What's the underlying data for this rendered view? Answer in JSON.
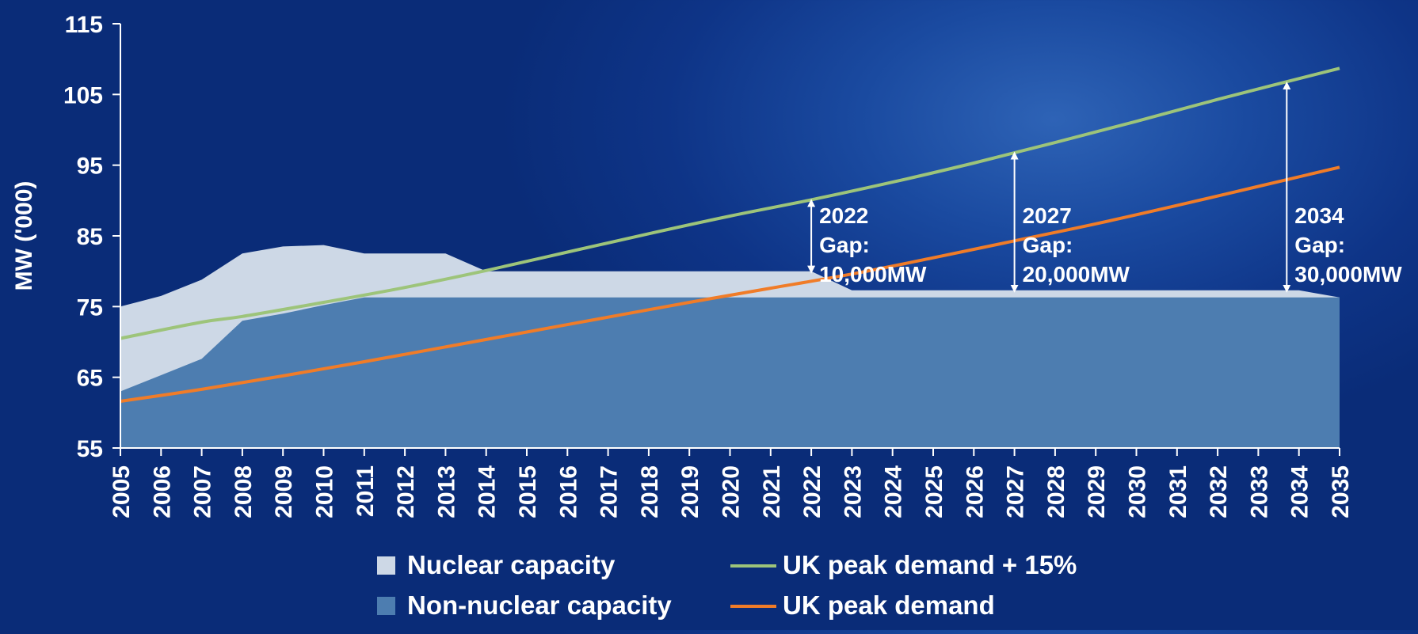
{
  "chart_data": {
    "type": "area",
    "ylabel": "MW ('000)",
    "xlabel": "",
    "ylim": [
      55,
      115
    ],
    "y_ticks": [
      55,
      65,
      75,
      85,
      95,
      105,
      115
    ],
    "x_categories": [
      "2005",
      "2006",
      "2007",
      "2008",
      "2009",
      "2010",
      "2011",
      "2012",
      "2013",
      "2014",
      "2015",
      "2016",
      "2017",
      "2018",
      "2019",
      "2020",
      "2021",
      "2022",
      "2023",
      "2024",
      "2025",
      "2026",
      "2027",
      "2028",
      "2029",
      "2030",
      "2031",
      "2032",
      "2033",
      "2034",
      "2035"
    ],
    "grid": false,
    "legend_position": "bottom",
    "series": [
      {
        "name": "Nuclear capacity",
        "type": "area",
        "color": "#cdd8e6",
        "points": [
          [
            2005,
            75
          ],
          [
            2006,
            76.5
          ],
          [
            2007,
            78.8
          ],
          [
            2008,
            82.5
          ],
          [
            2009,
            83.5
          ],
          [
            2010,
            83.7
          ],
          [
            2011,
            82.5
          ],
          [
            2012,
            82.5
          ],
          [
            2013,
            82.5
          ],
          [
            2014,
            80
          ],
          [
            2015,
            80
          ],
          [
            2016,
            80
          ],
          [
            2017,
            80
          ],
          [
            2018,
            80
          ],
          [
            2019,
            80
          ],
          [
            2020,
            80
          ],
          [
            2021,
            80
          ],
          [
            2022,
            80
          ],
          [
            2023,
            77.3
          ],
          [
            2024,
            77.3
          ],
          [
            2025,
            77.3
          ],
          [
            2026,
            77.3
          ],
          [
            2027,
            77.3
          ],
          [
            2028,
            77.3
          ],
          [
            2029,
            77.3
          ],
          [
            2030,
            77.3
          ],
          [
            2031,
            77.3
          ],
          [
            2032,
            77.3
          ],
          [
            2033,
            77.3
          ],
          [
            2034,
            77.3
          ],
          [
            2035,
            76.3
          ]
        ]
      },
      {
        "name": "Non-nuclear capacity",
        "type": "area",
        "color": "#4d7db0",
        "points": [
          [
            2005,
            63
          ],
          [
            2006,
            65.3
          ],
          [
            2007,
            67.6
          ],
          [
            2008,
            73
          ],
          [
            2009,
            74
          ],
          [
            2010,
            75.2
          ],
          [
            2011,
            76.3
          ],
          [
            2012,
            76.3
          ],
          [
            2013,
            76.3
          ],
          [
            2014,
            76.3
          ],
          [
            2015,
            76.3
          ],
          [
            2016,
            76.3
          ],
          [
            2017,
            76.3
          ],
          [
            2018,
            76.3
          ],
          [
            2019,
            76.3
          ],
          [
            2020,
            76.3
          ],
          [
            2021,
            76.3
          ],
          [
            2022,
            76.3
          ],
          [
            2023,
            76.3
          ],
          [
            2024,
            76.3
          ],
          [
            2025,
            76.3
          ],
          [
            2026,
            76.3
          ],
          [
            2027,
            76.3
          ],
          [
            2028,
            76.3
          ],
          [
            2029,
            76.3
          ],
          [
            2030,
            76.3
          ],
          [
            2031,
            76.3
          ],
          [
            2032,
            76.3
          ],
          [
            2033,
            76.3
          ],
          [
            2034,
            76.3
          ],
          [
            2035,
            76.3
          ]
        ]
      },
      {
        "name": "UK peak demand + 15%",
        "type": "line",
        "color": "#9dc47a",
        "points": [
          [
            2005,
            70.5
          ],
          [
            2007,
            72.8
          ],
          [
            2008,
            73.6
          ],
          [
            2010,
            75.6
          ],
          [
            2012,
            77.7
          ],
          [
            2014,
            80.1
          ],
          [
            2016,
            82.7
          ],
          [
            2018,
            85.3
          ],
          [
            2020,
            87.8
          ],
          [
            2022,
            90.1
          ],
          [
            2024,
            92.6
          ],
          [
            2026,
            95.3
          ],
          [
            2028,
            98.2
          ],
          [
            2030,
            101.2
          ],
          [
            2032,
            104.3
          ],
          [
            2035,
            108.7
          ]
        ]
      },
      {
        "name": "UK peak demand",
        "type": "line",
        "color": "#f07c28",
        "points": [
          [
            2005,
            61.6
          ],
          [
            2007,
            63.3
          ],
          [
            2009,
            65.2
          ],
          [
            2011,
            67.2
          ],
          [
            2013,
            69.3
          ],
          [
            2015,
            71.4
          ],
          [
            2017,
            73.5
          ],
          [
            2019,
            75.6
          ],
          [
            2021,
            77.6
          ],
          [
            2023,
            79.6
          ],
          [
            2025,
            81.9
          ],
          [
            2027,
            84.3
          ],
          [
            2029,
            86.7
          ],
          [
            2031,
            89.3
          ],
          [
            2033,
            92
          ],
          [
            2035,
            94.7
          ]
        ]
      }
    ],
    "annotations": [
      {
        "x": 2022,
        "from": 80,
        "to": 90,
        "lines": [
          "2022",
          "Gap:",
          "10,000MW"
        ]
      },
      {
        "x": 2027,
        "from": 77.3,
        "to": 96.7,
        "lines": [
          "2027",
          "Gap:",
          "20,000MW"
        ]
      },
      {
        "x": 2033.7,
        "from": 77.3,
        "to": 106.6,
        "lines": [
          "2034",
          "Gap:",
          "30,000MW"
        ]
      }
    ],
    "legend": [
      {
        "label": "Nuclear capacity",
        "marker": "square",
        "color": "#cdd8e6"
      },
      {
        "label": "UK peak demand + 15%",
        "marker": "line",
        "color": "#9dc47a"
      },
      {
        "label": "Non-nuclear capacity",
        "marker": "square",
        "color": "#4d7db0"
      },
      {
        "label": "UK peak demand",
        "marker": "line",
        "color": "#f07c28"
      }
    ]
  }
}
